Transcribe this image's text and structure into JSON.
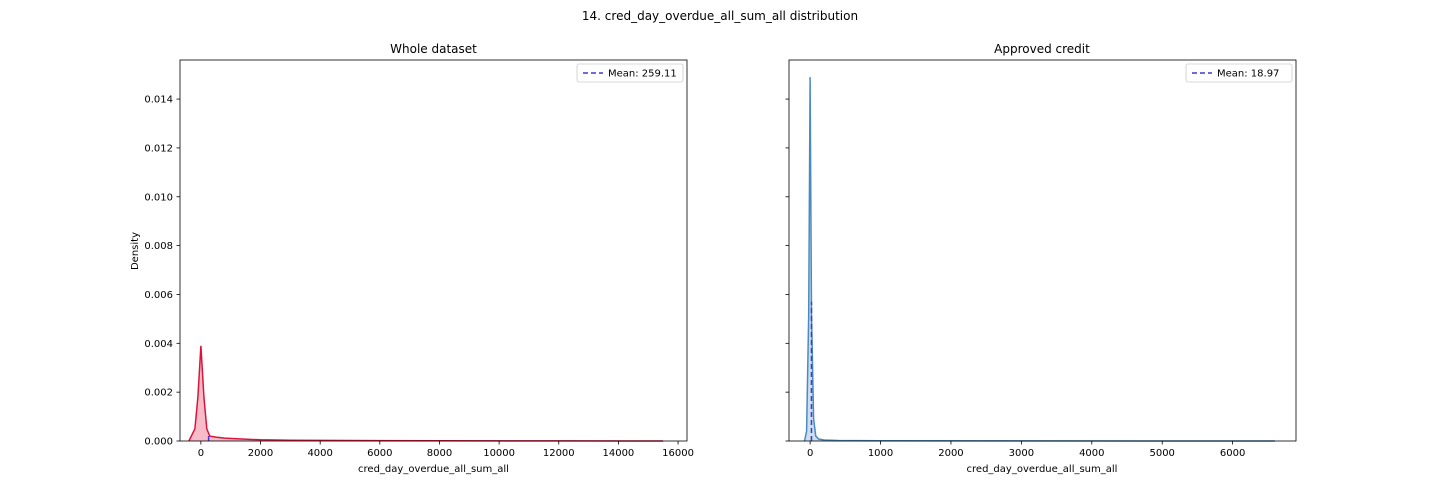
{
  "figure": {
    "suptitle": "14. cred_day_overdue_all_sum_all distribution"
  },
  "chart_data": [
    {
      "type": "area",
      "title": "Whole dataset",
      "xlabel": "cred_day_overdue_all_sum_all",
      "ylabel": "Density",
      "xlim": [
        -700,
        16300
      ],
      "ylim": [
        0,
        0.0156
      ],
      "xticks": [
        0,
        2000,
        4000,
        6000,
        8000,
        10000,
        12000,
        14000,
        16000
      ],
      "yticks": [
        0.0,
        0.002,
        0.004,
        0.006,
        0.008,
        0.01,
        0.012,
        0.014
      ],
      "ytick_labels": [
        "0.000",
        "0.002",
        "0.004",
        "0.006",
        "0.008",
        "0.010",
        "0.012",
        "0.014"
      ],
      "line_color": "#dc143c",
      "fill_color": "#f4a6b5",
      "mean": 259.11,
      "mean_color": "#3b3bd1",
      "legend": {
        "label": "Mean: 259.11",
        "position": "top-right"
      },
      "x": [
        -400,
        -200,
        -100,
        0,
        100,
        200,
        300,
        500,
        800,
        1200,
        2000,
        3000,
        5000,
        8000,
        12000,
        15500
      ],
      "y": [
        0.0,
        0.0005,
        0.0018,
        0.0039,
        0.0018,
        0.0005,
        0.0002,
        0.00016,
        0.00012,
        9e-05,
        5e-05,
        3e-05,
        2e-05,
        1e-05,
        5e-06,
        0.0
      ]
    },
    {
      "type": "area",
      "title": "Approved credit",
      "xlabel": "cred_day_overdue_all_sum_all",
      "ylabel": "",
      "xlim": [
        -300,
        6900
      ],
      "ylim": [
        0,
        0.0156
      ],
      "xticks": [
        0,
        1000,
        2000,
        3000,
        4000,
        5000,
        6000
      ],
      "yticks": [
        0.0,
        0.002,
        0.004,
        0.006,
        0.008,
        0.01,
        0.012,
        0.014
      ],
      "ytick_labels": [],
      "line_color": "#4a8bbf",
      "fill_color": "#bcd3ec",
      "mean": 18.97,
      "mean_color": "#3b3bd1",
      "legend": {
        "label": "Mean: 18.97",
        "position": "top-right"
      },
      "x": [
        -80,
        -50,
        -20,
        0,
        20,
        50,
        80,
        120,
        200,
        400,
        1000,
        3000,
        6600
      ],
      "y": [
        0.0,
        0.0004,
        0.0052,
        0.0149,
        0.0052,
        0.0009,
        0.0002,
        8e-05,
        4e-05,
        2e-05,
        1e-05,
        5e-06,
        0.0
      ]
    }
  ]
}
